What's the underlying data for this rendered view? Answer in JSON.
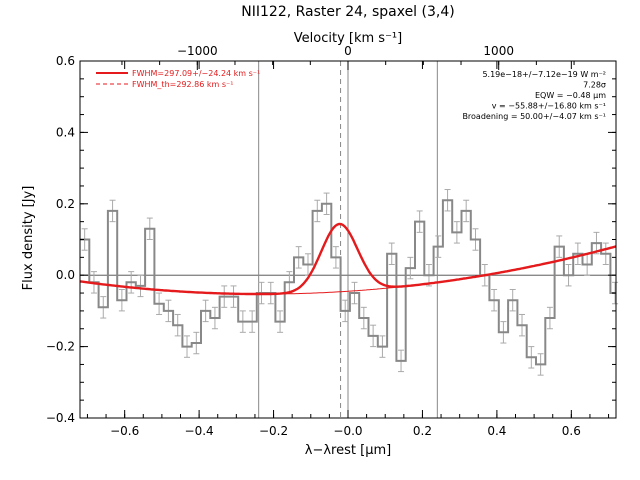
{
  "chart_data": {
    "type": "line",
    "title": "NII122, Raster 24, spaxel (3,4)",
    "xlabel": "λ−λrest [μm]",
    "ylabel": "Flux density [Jy]",
    "x2label": "Velocity [km s⁻¹]",
    "xlim": [
      -0.72,
      0.72
    ],
    "ylim": [
      -0.4,
      0.6
    ],
    "x_ticks": [
      -0.6,
      -0.4,
      -0.2,
      0.0,
      0.2,
      0.4,
      0.6
    ],
    "x_tick_labels": [
      "−0.6",
      "−0.4",
      "−0.2",
      "−0.0",
      "0.2",
      "0.4",
      "0.6"
    ],
    "y_ticks": [
      -0.4,
      -0.2,
      0.0,
      0.2,
      0.4,
      0.6
    ],
    "y_tick_labels": [
      "−0.4",
      "−0.2",
      "0.0",
      "0.2",
      "0.4",
      "0.6"
    ],
    "v_ticks": [
      -1000,
      0,
      1000
    ],
    "v_tick_labels": [
      "−1000",
      "0",
      "1000"
    ],
    "vel_per_um": 2470,
    "vlines_solid": [
      -0.24,
      0.0,
      0.24
    ],
    "vline_dashed": -0.02,
    "zero_line": 0.0,
    "step_width": 0.025,
    "spectrum": {
      "x": [
        -0.72,
        -0.695,
        -0.67,
        -0.645,
        -0.62,
        -0.595,
        -0.57,
        -0.545,
        -0.52,
        -0.495,
        -0.47,
        -0.445,
        -0.42,
        -0.395,
        -0.37,
        -0.345,
        -0.32,
        -0.295,
        -0.27,
        -0.245,
        -0.22,
        -0.195,
        -0.17,
        -0.145,
        -0.12,
        -0.095,
        -0.07,
        -0.045,
        -0.02,
        0.005,
        0.03,
        0.055,
        0.08,
        0.105,
        0.13,
        0.155,
        0.18,
        0.205,
        0.23,
        0.255,
        0.28,
        0.305,
        0.33,
        0.355,
        0.38,
        0.405,
        0.43,
        0.455,
        0.48,
        0.505,
        0.53,
        0.555,
        0.58,
        0.605,
        0.63,
        0.655,
        0.68,
        0.705
      ],
      "y": [
        0.1,
        -0.02,
        -0.09,
        0.18,
        -0.07,
        -0.02,
        -0.03,
        0.13,
        -0.08,
        -0.1,
        -0.14,
        -0.2,
        -0.19,
        -0.1,
        -0.12,
        -0.06,
        -0.06,
        -0.13,
        -0.13,
        -0.05,
        -0.05,
        -0.13,
        -0.02,
        0.05,
        0.03,
        0.18,
        0.2,
        0.05,
        -0.1,
        -0.05,
        -0.12,
        -0.17,
        -0.2,
        0.06,
        -0.24,
        0.02,
        0.15,
        0.0,
        0.08,
        0.21,
        0.12,
        0.18,
        0.1,
        0.0,
        -0.07,
        -0.16,
        -0.07,
        -0.14,
        -0.23,
        -0.25,
        -0.12,
        0.08,
        0.0,
        0.06,
        0.03,
        0.09,
        0.06,
        -0.05
      ],
      "err": 0.03
    },
    "fit_continuum": {
      "c0": -0.045,
      "c1": 0.068,
      "c2": 0.148
    },
    "fit_gaussian": {
      "center": -0.023,
      "amp": 0.19,
      "sigma": 0.049
    },
    "legend": [
      {
        "label": "FWHM=297.09+/−24.24 km s⁻¹",
        "style": "solid",
        "color": "#e41a1c"
      },
      {
        "label": "FWHM_th=292.86 km s⁻¹",
        "style": "dashed",
        "color": "#e41a1c"
      }
    ],
    "legend_position": "top-left",
    "annotations": [
      "5.19e−18+/−7.12e−19 W m⁻²",
      "7.28σ",
      "EQW = −0.48 μm",
      "v = −55.88+/−16.80 km s⁻¹",
      "Broadening = 50.00+/−4.07 km s⁻¹"
    ],
    "colors": {
      "spectrum": "#888888",
      "error_bars": "#aaaaaa",
      "fit": "#e41a1c",
      "axes": "#000000",
      "ref_lines": "#888888"
    }
  }
}
